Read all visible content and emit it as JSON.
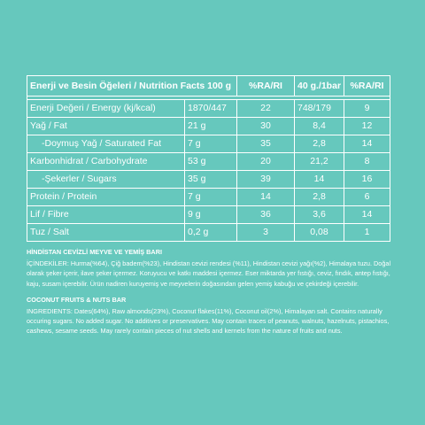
{
  "table": {
    "headers": {
      "name": "Enerji ve Besin Öğeleri / Nutrition Facts 100 g",
      "ri": "%RA/RI",
      "portion": "40 g./1bar için",
      "ri_portion": "%RA/RI"
    },
    "rows": [
      {
        "name": "Enerji Değeri / Energy (kj/kcal)",
        "value": "1870/447",
        "ri": "22",
        "portion": "748/179",
        "ri_portion": "9"
      },
      {
        "name": "Yağ / Fat",
        "value": "21 g",
        "ri": "30",
        "portion": "8,4",
        "ri_portion": "12"
      },
      {
        "name": "-Doymuş Yağ / Saturated Fat",
        "value": "7 g",
        "ri": "35",
        "portion": "2,8",
        "ri_portion": "14"
      },
      {
        "name": "Karbonhidrat / Carbohydrate",
        "value": "53 g",
        "ri": "20",
        "portion": "21,2",
        "ri_portion": "8"
      },
      {
        "name": "-Şekerler / Sugars",
        "value": "35 g",
        "ri": "39",
        "portion": "14",
        "ri_portion": "16"
      },
      {
        "name": "Protein / Protein",
        "value": "7 g",
        "ri": "14",
        "portion": "2,8",
        "ri_portion": "6"
      },
      {
        "name": "Lif / Fibre",
        "value": "9 g",
        "ri": "36",
        "portion": "3,6",
        "ri_portion": "14"
      },
      {
        "name": "Tuz / Salt",
        "value": "0,2 g",
        "ri": "3",
        "portion": "0,08",
        "ri_portion": "1"
      }
    ]
  },
  "ingredients_tr": {
    "title": "HİNDİSTAN CEVİZLİ MEYVE VE YEMİŞ BARI",
    "text": "İÇİNDEKİLER: Hurma(%64), Çiğ badem(%23), Hindistan cevizi rendesi (%11), Hindistan cevizi yağı(%2), Himalaya tuzu. Doğal olarak şeker içerir, ilave şeker içermez. Koruyucu ve katkı maddesi içermez. Eser miktarda yer fıstığı, ceviz, fındık, antep fıstığı, kaju, susam içerebilir. Ürün nadiren kuruyemiş ve meyvelerin doğasından gelen yemiş kabuğu ve çekirdeği içerebilir."
  },
  "ingredients_en": {
    "title": "COCONUT FRUITS & NUTS BAR",
    "text": "INGREDIENTS: Dates(64%), Raw almonds(23%), Coconut flakes(11%), Coconut oil(2%), Himalayan salt. Contains naturally occuring sugars. No added sugar. No additives or preservatives.  May contain traces of peanuts, walnuts, hazelnuts, pistachios, cashews, sesame seeds. May rarely contain pieces of nut shells and kernels from the nature of fruits and nuts."
  },
  "colors": {
    "background": "#66c8bd",
    "text": "#ffffff",
    "border": "#ffffff"
  }
}
